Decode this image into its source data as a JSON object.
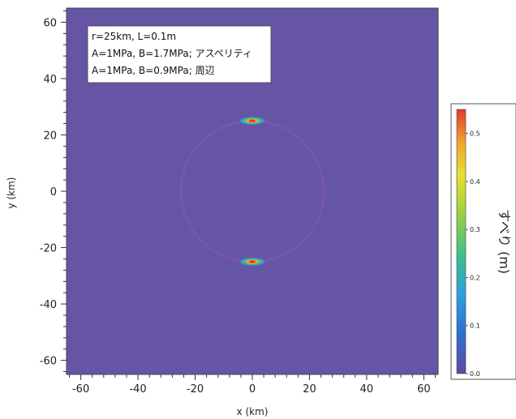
{
  "chart_data": {
    "type": "heatmap",
    "xlabel": "x (km)",
    "ylabel": "y (km)",
    "xlim": [
      -65,
      65
    ],
    "ylim": [
      -65,
      65
    ],
    "xticks": [
      -60,
      -40,
      -20,
      0,
      20,
      40,
      60
    ],
    "yticks": [
      -60,
      -40,
      -20,
      0,
      20,
      40,
      60
    ],
    "background_color": "#6655a5",
    "annotation": [
      "r=25km, L=0.1m",
      "A=1MPa, B=1.7MPa; アスペリティ",
      "A=1MPa, B=0.9MPa; 周辺"
    ],
    "ring": {
      "center": [
        0,
        0
      ],
      "radius_km": 25,
      "max_slip_m": 0.02
    },
    "hotspots": [
      {
        "x": 0,
        "y": 25,
        "max_slip_m": 0.55
      },
      {
        "x": 0,
        "y": -25,
        "max_slip_m": 0.55
      }
    ],
    "colorbar": {
      "label": "すべり (m)",
      "min": 0.0,
      "max": 0.55,
      "ticks": [
        0.0,
        0.1,
        0.2,
        0.3,
        0.4,
        0.5
      ],
      "colormap": [
        "#5a4aa0",
        "#2f6fd0",
        "#2aa0e0",
        "#3cc08a",
        "#9ad040",
        "#e6e030",
        "#f0a030",
        "#e03a2a"
      ]
    }
  }
}
